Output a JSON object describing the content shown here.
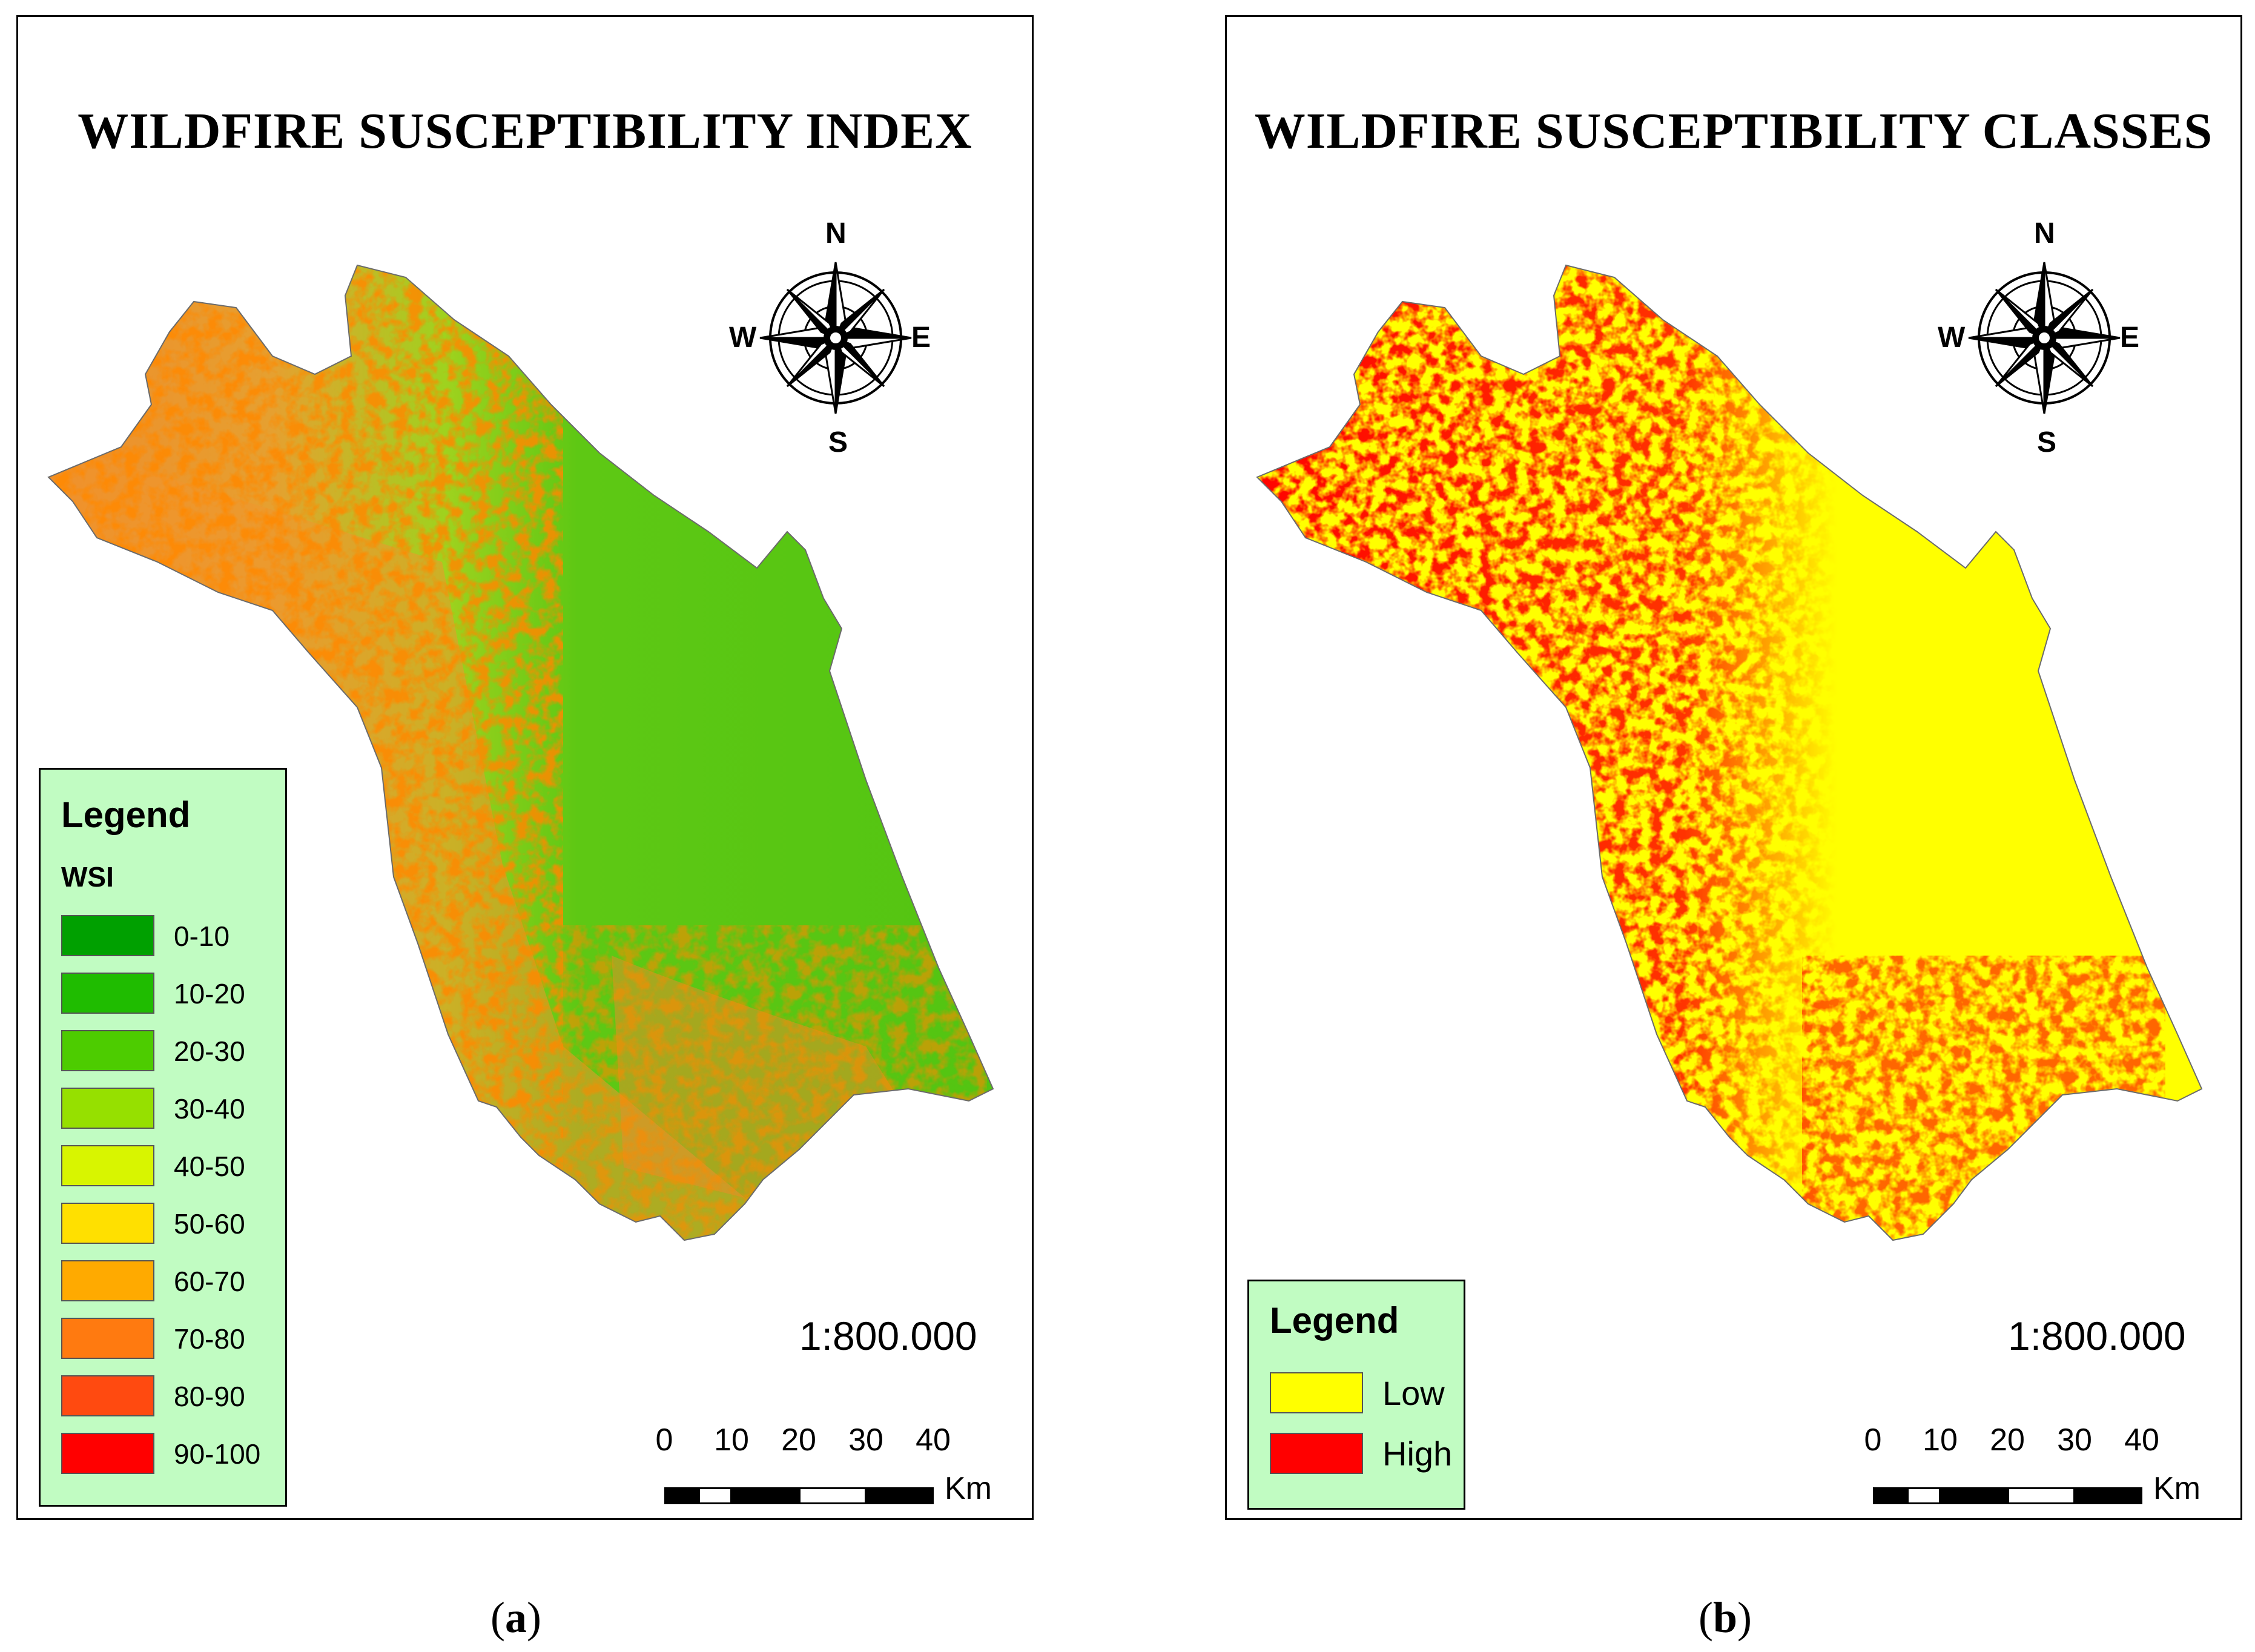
{
  "panels": [
    {
      "title": "WILDFIRE SUSCEPTIBILITY INDEX",
      "compass": {
        "n": "N",
        "s": "S",
        "e": "E",
        "w": "W"
      },
      "legend": {
        "title": "Legend",
        "subtitle": "WSI",
        "items": [
          {
            "label": "0-10",
            "color": "#00a000"
          },
          {
            "label": "10-20",
            "color": "#1fbc00"
          },
          {
            "label": "20-30",
            "color": "#4dcc00"
          },
          {
            "label": "30-40",
            "color": "#96e000"
          },
          {
            "label": "40-50",
            "color": "#d8f500"
          },
          {
            "label": "50-60",
            "color": "#ffe000"
          },
          {
            "label": "60-70",
            "color": "#ffaa00"
          },
          {
            "label": "70-80",
            "color": "#ff7a10"
          },
          {
            "label": "80-90",
            "color": "#ff4a10"
          },
          {
            "label": "90-100",
            "color": "#ff0000"
          }
        ]
      },
      "scale": "1:800.000",
      "scalebar": {
        "ticks": [
          "0",
          "10",
          "20",
          "30",
          "40"
        ],
        "unit": "Km"
      },
      "caption_letter": "a"
    },
    {
      "title": "WILDFIRE SUSCEPTIBILITY CLASSES",
      "compass": {
        "n": "N",
        "s": "S",
        "e": "E",
        "w": "W"
      },
      "legend": {
        "title": "Legend",
        "items": [
          {
            "label": "Low",
            "color": "#ffff00"
          },
          {
            "label": "High",
            "color": "#ff0000"
          }
        ]
      },
      "scale": "1:800.000",
      "scalebar": {
        "ticks": [
          "0",
          "10",
          "20",
          "30",
          "40"
        ],
        "unit": "Km"
      },
      "caption_letter": "b"
    }
  ]
}
